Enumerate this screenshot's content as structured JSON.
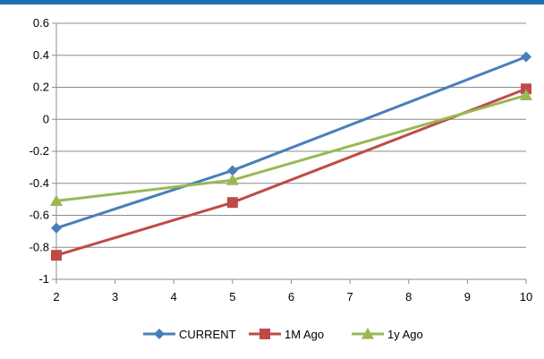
{
  "chart_data": {
    "type": "line",
    "x": [
      2,
      5,
      10
    ],
    "series": [
      {
        "name": "CURRENT",
        "color": "#4a7ebb",
        "marker": "diamond",
        "values": [
          -0.68,
          -0.32,
          0.39
        ]
      },
      {
        "name": "1M Ago",
        "color": "#be4b48",
        "marker": "square",
        "values": [
          -0.85,
          -0.52,
          0.19
        ]
      },
      {
        "name": "1y Ago",
        "color": "#98b954",
        "marker": "triangle",
        "values": [
          -0.51,
          -0.38,
          0.15
        ]
      }
    ],
    "xlim": [
      2,
      10
    ],
    "ylim": [
      -1,
      0.6
    ],
    "x_ticks": [
      "2",
      "3",
      "4",
      "5",
      "6",
      "7",
      "8",
      "9",
      "10"
    ],
    "y_ticks": [
      "0.6",
      "0.4",
      "0.2",
      "0",
      "-0.2",
      "-0.4",
      "-0.6",
      "-0.8",
      "-1"
    ],
    "grid": "horizontal",
    "legend_position": "bottom",
    "title": "",
    "xlabel": "",
    "ylabel": ""
  }
}
